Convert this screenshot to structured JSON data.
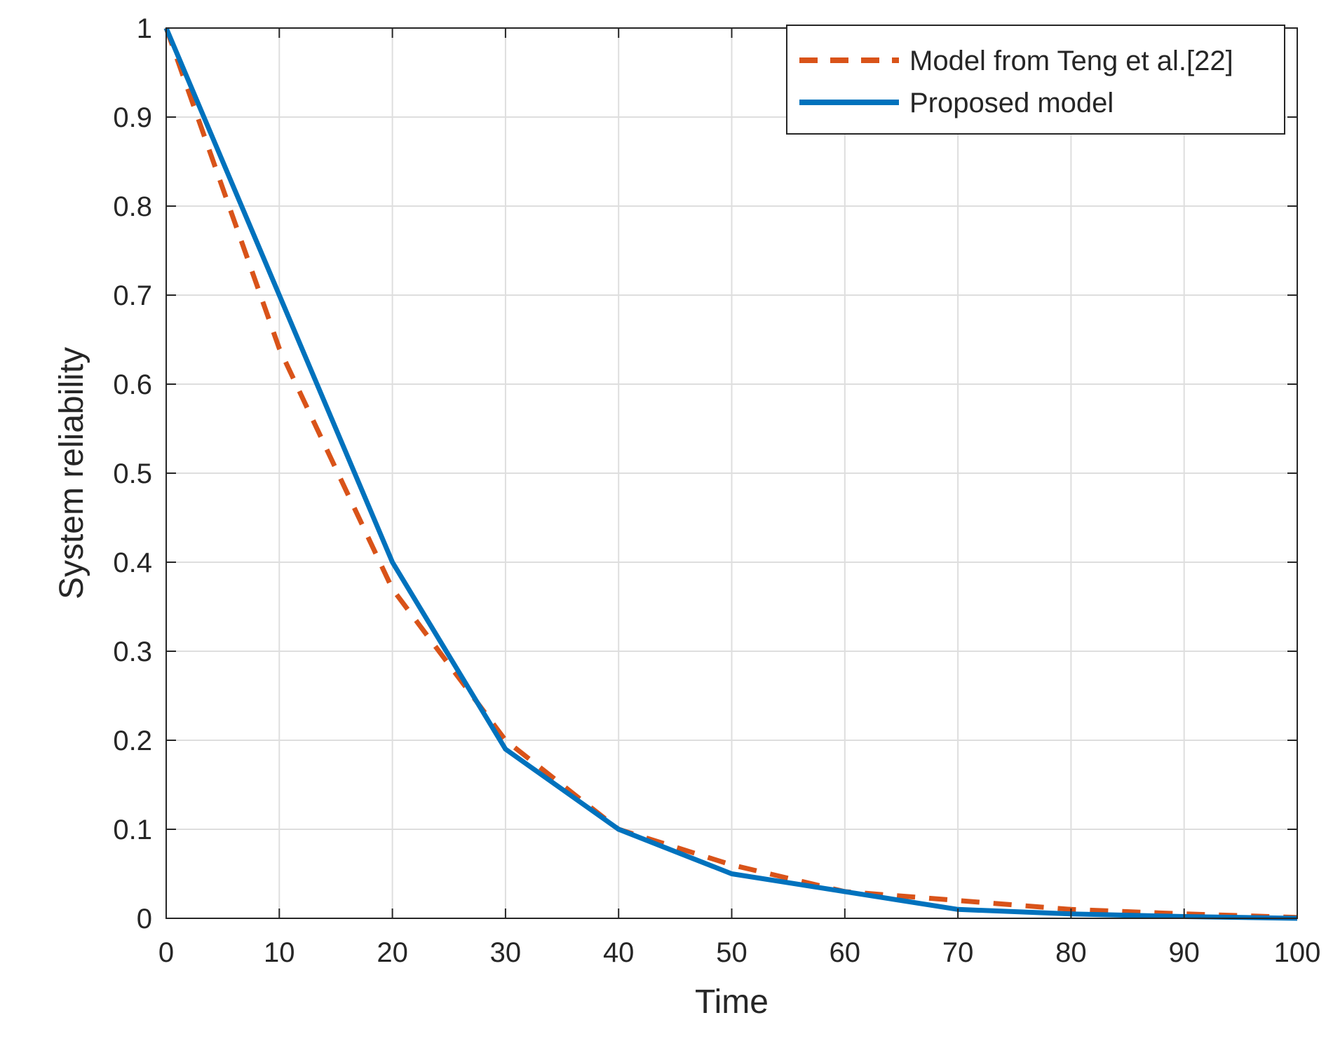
{
  "chart_data": {
    "type": "line",
    "title": "",
    "xlabel": "Time",
    "ylabel": "System reliability",
    "xlim": [
      0,
      100
    ],
    "ylim": [
      0,
      1
    ],
    "xticks": [
      0,
      10,
      20,
      30,
      40,
      50,
      60,
      70,
      80,
      90,
      100
    ],
    "yticks": [
      0,
      0.1,
      0.2,
      0.3,
      0.4,
      0.5,
      0.6,
      0.7,
      0.8,
      0.9,
      1
    ],
    "xtick_labels": [
      "0",
      "10",
      "20",
      "30",
      "40",
      "50",
      "60",
      "70",
      "80",
      "90",
      "100"
    ],
    "ytick_labels": [
      "0",
      "0.1",
      "0.2",
      "0.3",
      "0.4",
      "0.5",
      "0.6",
      "0.7",
      "0.8",
      "0.9",
      "1"
    ],
    "grid": true,
    "legend_position": "top-right",
    "series": [
      {
        "name": "Model from Teng et al.[22]",
        "color": "#d95319",
        "style": "dashed",
        "x": [
          0,
          10,
          20,
          30,
          40,
          50,
          60,
          70,
          80,
          90,
          100
        ],
        "y": [
          1,
          0.64,
          0.37,
          0.2,
          0.1,
          0.06,
          0.03,
          0.02,
          0.01,
          0.005,
          0.001
        ]
      },
      {
        "name": "Proposed model",
        "color": "#0072bd",
        "style": "solid",
        "x": [
          0,
          10,
          20,
          30,
          40,
          50,
          60,
          70,
          80,
          90,
          100
        ],
        "y": [
          1,
          0.7,
          0.4,
          0.19,
          0.1,
          0.05,
          0.03,
          0.01,
          0.005,
          0.002,
          0
        ]
      }
    ]
  }
}
